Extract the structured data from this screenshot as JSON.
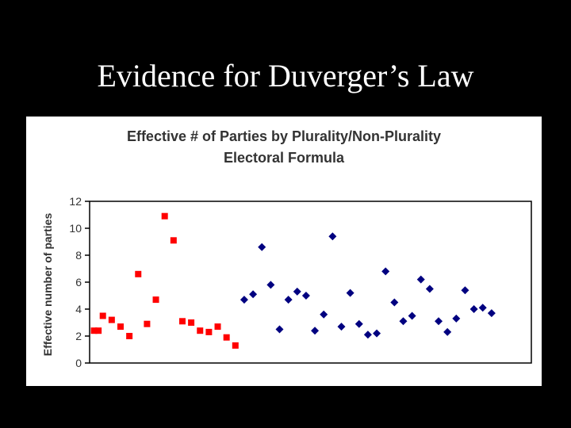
{
  "slide": {
    "title": "Evidence for Duverger’s Law"
  },
  "chart_data": {
    "type": "scatter",
    "title_lines": [
      "Effective # of Parties by Plurality/Non-Plurality",
      "Electoral Formula"
    ],
    "xlabel": "",
    "ylabel": "Effective number of parties",
    "ylim": [
      0,
      12
    ],
    "yticks": [
      0,
      2,
      4,
      6,
      8,
      10,
      12
    ],
    "xlim": [
      0.5,
      50.5
    ],
    "grid": false,
    "legend": "none",
    "series": [
      {
        "marker": "square",
        "color": "#ff0000",
        "points": [
          [
            1,
            2.4
          ],
          [
            1.5,
            2.4
          ],
          [
            2,
            3.5
          ],
          [
            3,
            3.2
          ],
          [
            4,
            2.7
          ],
          [
            5,
            2.0
          ],
          [
            6,
            6.6
          ],
          [
            7,
            2.9
          ],
          [
            8,
            4.7
          ],
          [
            9,
            10.9
          ],
          [
            10,
            9.1
          ],
          [
            11,
            3.1
          ],
          [
            12,
            3.0
          ],
          [
            13,
            2.4
          ],
          [
            14,
            2.3
          ],
          [
            15,
            2.7
          ],
          [
            16,
            1.9
          ],
          [
            17,
            1.3
          ]
        ]
      },
      {
        "marker": "diamond",
        "color": "#000080",
        "points": [
          [
            18,
            4.7
          ],
          [
            19,
            5.1
          ],
          [
            20,
            8.6
          ],
          [
            21,
            5.8
          ],
          [
            22,
            2.5
          ],
          [
            23,
            4.7
          ],
          [
            24,
            5.3
          ],
          [
            25,
            5.0
          ],
          [
            26,
            2.4
          ],
          [
            27,
            3.6
          ],
          [
            28,
            9.4
          ],
          [
            29,
            2.7
          ],
          [
            30,
            5.2
          ],
          [
            31,
            2.9
          ],
          [
            32,
            2.1
          ],
          [
            33,
            2.2
          ],
          [
            34,
            6.8
          ],
          [
            35,
            4.5
          ],
          [
            36,
            3.1
          ],
          [
            37,
            3.5
          ],
          [
            38,
            6.2
          ],
          [
            39,
            5.5
          ],
          [
            40,
            3.1
          ],
          [
            41,
            2.3
          ],
          [
            42,
            3.3
          ],
          [
            43,
            5.4
          ],
          [
            44,
            4.0
          ],
          [
            45,
            4.1
          ],
          [
            46,
            3.7
          ]
        ]
      }
    ]
  }
}
